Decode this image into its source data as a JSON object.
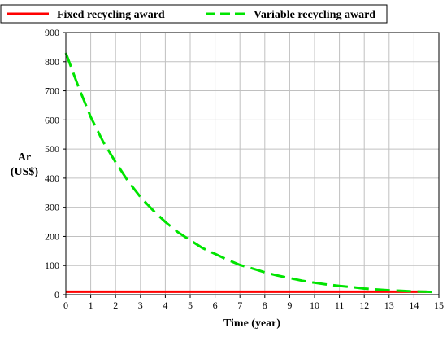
{
  "chart_data": {
    "type": "line",
    "title": "",
    "xlabel": "Time (year)",
    "ylabel_line1": "Ar",
    "ylabel_line2": "(US$)",
    "xlim": [
      0,
      15
    ],
    "ylim": [
      0,
      900
    ],
    "x_ticks": [
      "0",
      "1",
      "2",
      "3",
      "4",
      "5",
      "6",
      "7",
      "8",
      "9",
      "10",
      "11",
      "12",
      "13",
      "14",
      "15"
    ],
    "y_ticks": [
      "0",
      "100",
      "200",
      "300",
      "400",
      "500",
      "600",
      "700",
      "800",
      "900"
    ],
    "grid": true,
    "legend_position": "top",
    "series": [
      {
        "name": "Fixed recycling award",
        "color": "#ff0000",
        "line_style": "solid",
        "x": [
          0,
          14.5
        ],
        "y": [
          10,
          10
        ]
      },
      {
        "name": "Variable recycling award",
        "color": "#00e400",
        "line_style": "dashed",
        "x": [
          0,
          0.5,
          1,
          1.5,
          2,
          2.5,
          3,
          3.5,
          4,
          4.5,
          5,
          5.5,
          6,
          6.5,
          7,
          7.5,
          8,
          8.5,
          9,
          9.5,
          10,
          10.5,
          11,
          11.5,
          12,
          12.5,
          13,
          13.5,
          14,
          14.5,
          15
        ],
        "y": [
          830,
          715,
          610,
          525,
          455,
          390,
          335,
          290,
          250,
          215,
          187,
          160,
          140,
          120,
          102,
          90,
          77,
          66,
          57,
          48,
          41,
          35,
          30,
          26,
          21,
          18,
          15,
          13,
          11,
          10,
          9
        ]
      }
    ]
  }
}
